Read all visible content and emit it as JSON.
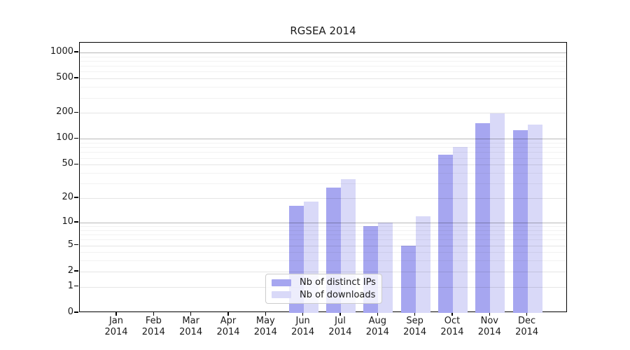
{
  "title": "RGSEA 2014",
  "chart_data": {
    "type": "bar",
    "title": "RGSEA 2014",
    "categories": [
      "Jan 2014",
      "Feb 2014",
      "Mar 2014",
      "Apr 2014",
      "May 2014",
      "Jun 2014",
      "Jul 2014",
      "Aug 2014",
      "Sep 2014",
      "Oct 2014",
      "Nov 2014",
      "Dec 2014"
    ],
    "series": [
      {
        "name": "Nb of distinct IPs",
        "color": "#a6a6f0",
        "values": [
          0,
          0,
          0,
          0,
          0,
          16,
          27,
          9,
          5,
          66,
          153,
          127
        ]
      },
      {
        "name": "Nb of downloads",
        "color": "#d9d9f8",
        "values": [
          0,
          0,
          0,
          0,
          0,
          18,
          34,
          10,
          12,
          80,
          197,
          148
        ]
      }
    ],
    "xlabel": "",
    "ylabel": "",
    "y_scale": "log10(1+x)",
    "y_ticks": [
      0,
      1,
      2,
      5,
      10,
      20,
      50,
      100,
      200,
      500,
      1000
    ],
    "y_tick_labels": [
      "0",
      "1",
      "2",
      "5",
      "10",
      "20",
      "50",
      "100",
      "200",
      "500",
      "1000"
    ],
    "y_minor_gridlines": [
      3,
      4,
      6,
      7,
      8,
      9,
      30,
      40,
      60,
      70,
      80,
      90,
      300,
      400,
      600,
      700,
      800,
      900
    ],
    "y_strong_gridlines": [
      10,
      100,
      1000
    ],
    "ylim": [
      0,
      1300
    ],
    "grid": true,
    "legend_position": "inside lower-center"
  },
  "colors": {
    "background": "#ffffff",
    "bar_distinct_ips": "#a6a6f0",
    "bar_downloads": "#d9d9f8",
    "spine": "#000000",
    "gridline_strong": "#b6b6b6",
    "gridline_major": "#e5e5e5",
    "gridline_minor": "#f2f2f2"
  }
}
